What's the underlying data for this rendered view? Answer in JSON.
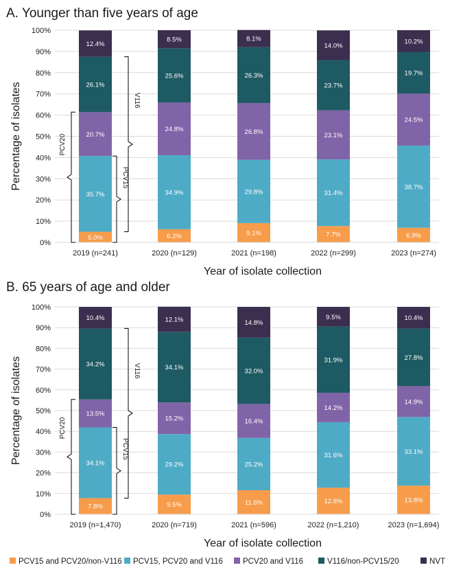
{
  "colors": {
    "pcv15_pcv20_nonv116": "#f79c4a",
    "pcv15_pcv20_v116": "#4eabc6",
    "pcv20_v116": "#8064a8",
    "v116_nonpcv": "#1e5a63",
    "nvt": "#3c2e4f",
    "grid": "#d9d9d9",
    "axis": "#000000",
    "bracket": "#000000",
    "label_text": "#ffffff"
  },
  "legend": {
    "items": [
      {
        "key": "pcv15_pcv20_nonv116",
        "label": "PCV15 and PCV20/non-V116"
      },
      {
        "key": "pcv15_pcv20_v116",
        "label": "PCV15, PCV20 and V116"
      },
      {
        "key": "pcv20_v116",
        "label": "PCV20 and V116"
      },
      {
        "key": "v116_nonpcv",
        "label": "V116/non-PCV15/20"
      },
      {
        "key": "nvt",
        "label": "NVT"
      }
    ]
  },
  "chart_data": [
    {
      "type": "bar",
      "stacked": true,
      "title": "A. Younger than five years of age",
      "xlabel": "Year of isolate collection",
      "ylabel": "Percentage of isolates",
      "ylim": [
        0,
        100
      ],
      "yticks": [
        "0%",
        "10%",
        "20%",
        "30%",
        "40%",
        "50%",
        "60%",
        "70%",
        "80%",
        "90%",
        "100%"
      ],
      "categories": [
        "2019 (n=241)",
        "2020 (n=129)",
        "2021 (n=198)",
        "2022 (n=299)",
        "2023 (n=274)"
      ],
      "series": [
        {
          "key": "pcv15_pcv20_nonv116",
          "name": "PCV15 and PCV20/non-V116",
          "values": [
            5.0,
            6.2,
            9.1,
            7.7,
            6.9
          ],
          "labels": [
            "5.0%",
            "6.2%",
            "9.1%",
            "7.7%",
            "6.9%"
          ]
        },
        {
          "key": "pcv15_pcv20_v116",
          "name": "PCV15, PCV20 and V116",
          "values": [
            35.7,
            34.9,
            29.8,
            31.4,
            38.7
          ],
          "labels": [
            "35.7%",
            "34.9%",
            "29.8%",
            "31.4%",
            "38.7%"
          ]
        },
        {
          "key": "pcv20_v116",
          "name": "PCV20 and V116",
          "values": [
            20.7,
            24.8,
            26.8,
            23.1,
            24.5
          ],
          "labels": [
            "20.7%",
            "24.8%",
            "26.8%",
            "23.1%",
            "24.5%"
          ]
        },
        {
          "key": "v116_nonpcv",
          "name": "V116/non-PCV15/20",
          "values": [
            26.1,
            25.6,
            26.3,
            23.7,
            19.7
          ],
          "labels": [
            "26.1%",
            "25.6%",
            "26.3%",
            "23.7%",
            "19.7%"
          ]
        },
        {
          "key": "nvt",
          "name": "NVT",
          "values": [
            12.4,
            8.5,
            8.1,
            14.0,
            10.2
          ],
          "labels": [
            "12.4%",
            "8.5%",
            "8.1%",
            "14.0%",
            "10.2%"
          ]
        }
      ],
      "brackets": [
        {
          "label": "PCV20",
          "series": [
            "pcv15_pcv20_nonv116",
            "pcv15_pcv20_v116",
            "pcv20_v116"
          ]
        },
        {
          "label": "PCV15",
          "series": [
            "pcv15_pcv20_nonv116",
            "pcv15_pcv20_v116"
          ]
        },
        {
          "label": "V116",
          "series": [
            "pcv15_pcv20_v116",
            "pcv20_v116",
            "v116_nonpcv"
          ]
        }
      ]
    },
    {
      "type": "bar",
      "stacked": true,
      "title": "B. 65 years of age and older",
      "xlabel": "Year of isolate collection",
      "ylabel": "Percentage of isolates",
      "ylim": [
        0,
        100
      ],
      "yticks": [
        "0%",
        "10%",
        "20%",
        "30%",
        "40%",
        "50%",
        "60%",
        "70%",
        "80%",
        "90%",
        "100%"
      ],
      "categories": [
        "2019 (n=1,470)",
        "2020 (n=719)",
        "2021 (n=596)",
        "2022 (n=1,210)",
        "2023 (n=1,694)"
      ],
      "series": [
        {
          "key": "pcv15_pcv20_nonv116",
          "name": "PCV15 and PCV20/non-V116",
          "values": [
            7.8,
            9.5,
            11.6,
            12.8,
            13.8
          ],
          "labels": [
            "7.8%",
            "9.5%",
            "11.6%",
            "12.8%",
            "13.8%"
          ]
        },
        {
          "key": "pcv15_pcv20_v116",
          "name": "PCV15, PCV20 and V116",
          "values": [
            34.1,
            29.2,
            25.2,
            31.6,
            33.1
          ],
          "labels": [
            "34.1%",
            "29.2%",
            "25.2%",
            "31.6%",
            "33.1%"
          ]
        },
        {
          "key": "pcv20_v116",
          "name": "PCV20 and V116",
          "values": [
            13.5,
            15.2,
            16.4,
            14.2,
            14.9
          ],
          "labels": [
            "13.5%",
            "15.2%",
            "16.4%",
            "14.2%",
            "14.9%"
          ]
        },
        {
          "key": "v116_nonpcv",
          "name": "V116/non-PCV15/20",
          "values": [
            34.2,
            34.1,
            32.0,
            31.9,
            27.8
          ],
          "labels": [
            "34.2%",
            "34.1%",
            "32.0%",
            "31.9%",
            "27.8%"
          ]
        },
        {
          "key": "nvt",
          "name": "NVT",
          "values": [
            10.4,
            12.1,
            14.8,
            9.5,
            10.4
          ],
          "labels": [
            "10.4%",
            "12.1%",
            "14.8%",
            "9.5%",
            "10.4%"
          ]
        }
      ],
      "brackets": [
        {
          "label": "PCV20",
          "series": [
            "pcv15_pcv20_nonv116",
            "pcv15_pcv20_v116",
            "pcv20_v116"
          ]
        },
        {
          "label": "PCV15",
          "series": [
            "pcv15_pcv20_nonv116",
            "pcv15_pcv20_v116"
          ]
        },
        {
          "label": "V116",
          "series": [
            "pcv15_pcv20_v116",
            "pcv20_v116",
            "v116_nonpcv"
          ]
        }
      ]
    }
  ]
}
